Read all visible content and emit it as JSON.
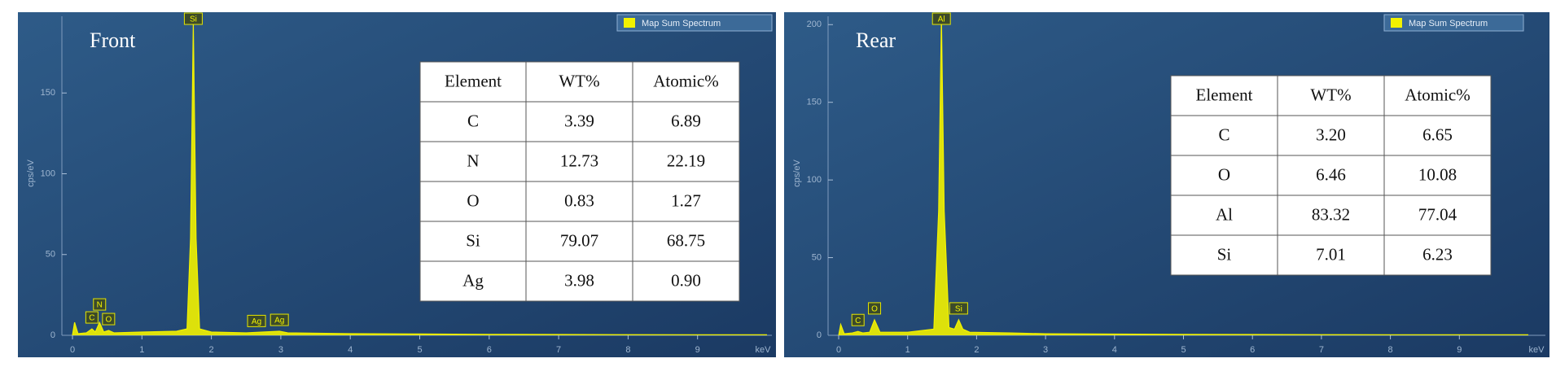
{
  "chart_data": [
    {
      "type": "spectrum",
      "title": "Front",
      "series_name": "Map Sum Spectrum",
      "color": "#f2f200",
      "ylabel": "cps/eV",
      "xlabel": "keV",
      "x": [
        0,
        0.03,
        0.08,
        0.2,
        0.28,
        0.33,
        0.39,
        0.45,
        0.52,
        0.6,
        1.0,
        1.5,
        1.65,
        1.7,
        1.74,
        1.78,
        1.83,
        2.0,
        2.5,
        2.98,
        3.1,
        4,
        5,
        6,
        7,
        8,
        9,
        10
      ],
      "values": [
        0,
        8,
        1,
        1.5,
        4,
        2,
        8,
        2,
        3,
        1.5,
        2,
        2.5,
        4,
        60,
        193,
        60,
        4,
        2,
        1.5,
        2.5,
        1.5,
        1,
        0.8,
        0.6,
        0.5,
        0.4,
        0.3,
        0.3
      ],
      "xlim": [
        0,
        10
      ],
      "ylim": [
        0,
        200
      ],
      "xticks": [
        0,
        1,
        2,
        3,
        4,
        5,
        6,
        7,
        8,
        9
      ],
      "yticks": [
        0,
        50,
        100,
        150
      ],
      "peak_labels": [
        {
          "text": "C",
          "x": 0.28
        },
        {
          "text": "N",
          "x": 0.39
        },
        {
          "text": "O",
          "x": 0.52
        },
        {
          "text": "Si",
          "x": 1.74
        },
        {
          "text": "Ag",
          "x": 2.65
        },
        {
          "text": "Ag",
          "x": 2.98
        }
      ],
      "table": {
        "header": [
          "Element",
          "WT%",
          "Atomic%"
        ],
        "rows": [
          [
            "C",
            "3.39",
            "6.89"
          ],
          [
            "N",
            "12.73",
            "22.19"
          ],
          [
            "O",
            "0.83",
            "1.27"
          ],
          [
            "Si",
            "79.07",
            "68.75"
          ],
          [
            "Ag",
            "3.98",
            "0.90"
          ]
        ]
      }
    },
    {
      "type": "spectrum",
      "title": "Rear",
      "series_name": "Map Sum Spectrum",
      "color": "#f2f200",
      "ylabel": "cps/eV",
      "xlabel": "keV",
      "x": [
        0,
        0.03,
        0.08,
        0.2,
        0.28,
        0.35,
        0.45,
        0.52,
        0.6,
        1.0,
        1.38,
        1.45,
        1.49,
        1.53,
        1.6,
        1.68,
        1.74,
        1.8,
        1.9,
        2.5,
        3,
        4,
        5,
        6,
        7,
        8,
        9,
        10
      ],
      "values": [
        0,
        7,
        1,
        1.5,
        2.5,
        1.5,
        2,
        10,
        2,
        2,
        4,
        80,
        205,
        80,
        5,
        4,
        10,
        4,
        2,
        1.5,
        1,
        0.8,
        0.6,
        0.5,
        0.4,
        0.3,
        0.3,
        0.3
      ],
      "xlim": [
        0,
        10
      ],
      "ylim": [
        0,
        208
      ],
      "xticks": [
        0,
        1,
        2,
        3,
        4,
        5,
        6,
        7,
        8,
        9
      ],
      "yticks": [
        0,
        50,
        100,
        150,
        200
      ],
      "peak_labels": [
        {
          "text": "C",
          "x": 0.28
        },
        {
          "text": "O",
          "x": 0.52
        },
        {
          "text": "Al",
          "x": 1.49
        },
        {
          "text": "Si",
          "x": 1.74
        }
      ],
      "table": {
        "header": [
          "Element",
          "WT%",
          "Atomic%"
        ],
        "rows": [
          [
            "C",
            "3.20",
            "6.65"
          ],
          [
            "O",
            "6.46",
            "10.08"
          ],
          [
            "Al",
            "83.32",
            "77.04"
          ],
          [
            "Si",
            "7.01",
            "6.23"
          ]
        ]
      }
    }
  ]
}
